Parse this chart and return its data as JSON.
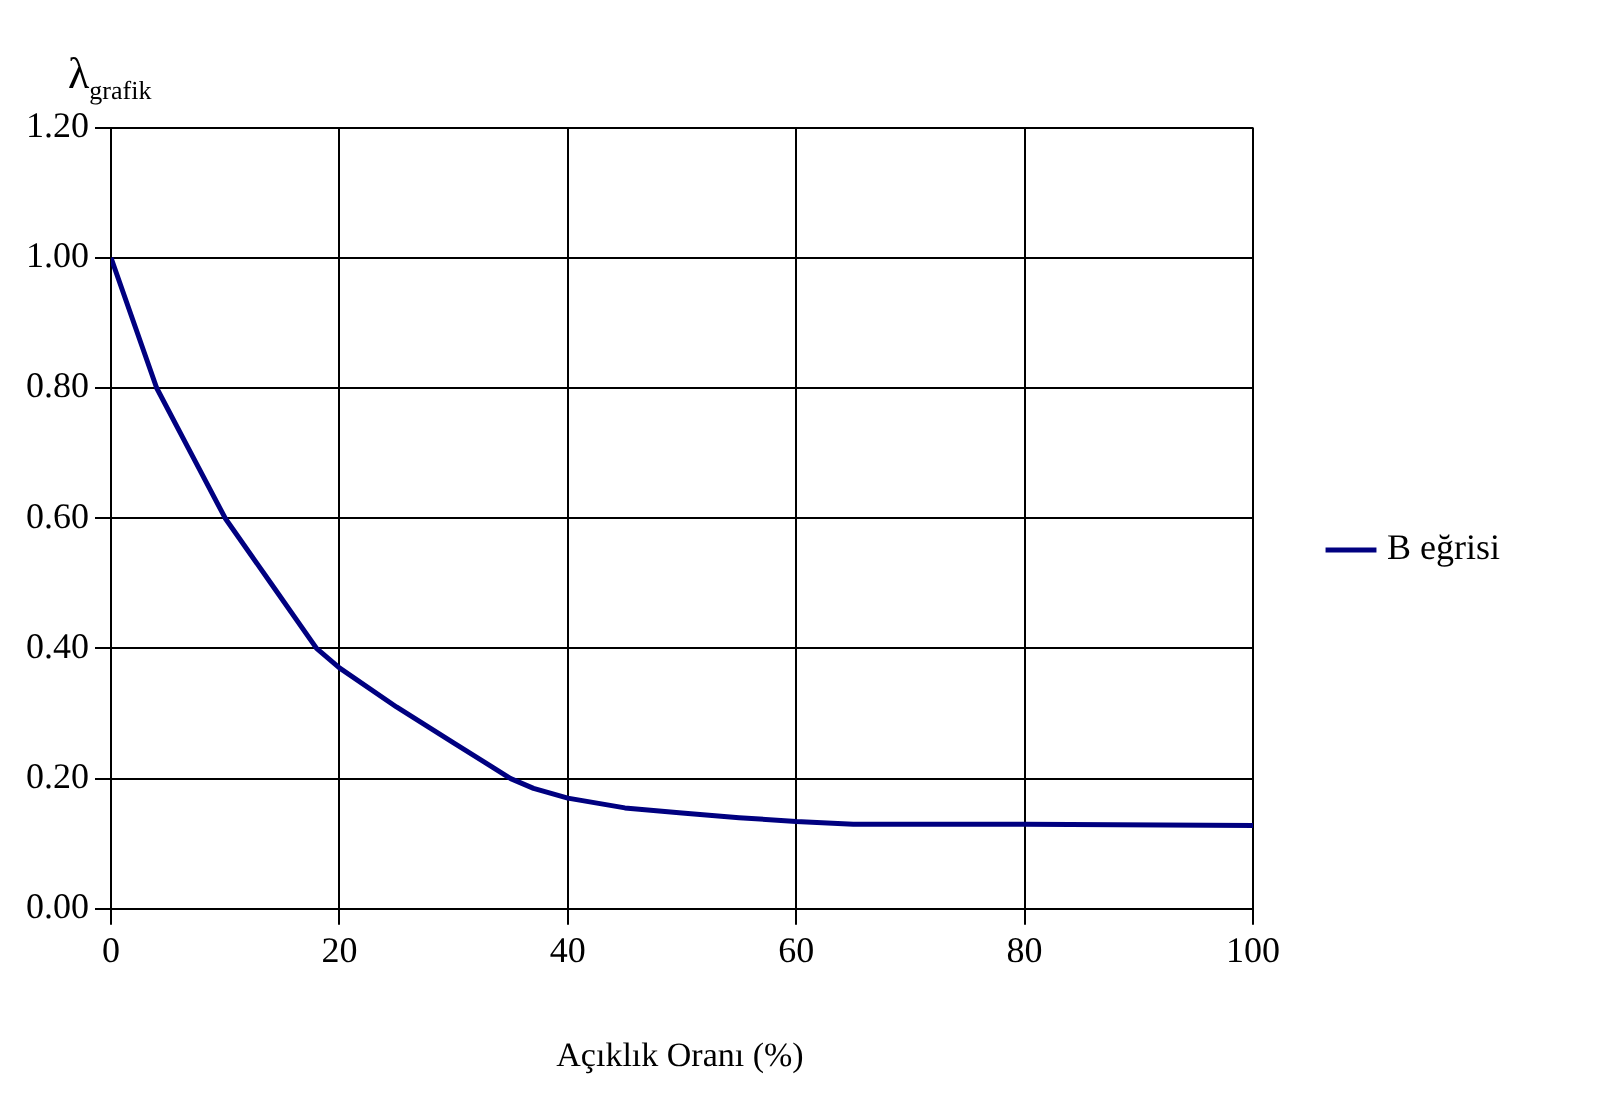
{
  "chart_data": {
    "type": "line",
    "title": "λ$_{grafik}$",
    "xlabel": "Açıklık Oranı (%)",
    "series": [
      {
        "name": "B eğrisi",
        "color": "#000080",
        "x": [
          0,
          4,
          7,
          10,
          14,
          18,
          20,
          25,
          30,
          35,
          37,
          40,
          45,
          50,
          55,
          60,
          65,
          80,
          100
        ],
        "values": [
          1.0,
          0.8,
          0.7,
          0.6,
          0.5,
          0.4,
          0.37,
          0.31,
          0.255,
          0.2,
          0.185,
          0.17,
          0.155,
          0.147,
          0.14,
          0.134,
          0.13,
          0.13,
          0.128
        ]
      }
    ],
    "xlim": [
      0,
      100
    ],
    "xticks": [
      0,
      20,
      40,
      60,
      80,
      100
    ],
    "ylim": [
      0,
      1.2
    ],
    "yticks": [
      {
        "value": 0,
        "label": "0.00"
      },
      {
        "value": 0.2,
        "label": "0.20"
      },
      {
        "value": 0.4,
        "label": "0.40"
      },
      {
        "value": 0.6,
        "label": "0.60"
      },
      {
        "value": 0.8,
        "label": "0.80"
      },
      {
        "value": 1,
        "label": "1.00"
      },
      {
        "value": 1.2,
        "label": "1.20"
      }
    ],
    "grid": true,
    "legend": "right",
    "marker": "none",
    "line_style": "solid"
  }
}
